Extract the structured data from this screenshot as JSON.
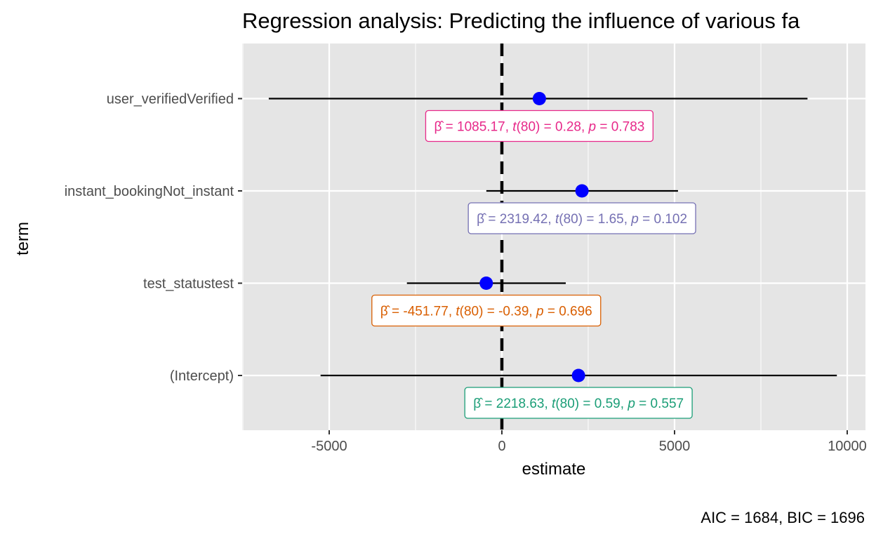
{
  "chart_data": {
    "type": "scatter",
    "subtype": "coefficient-plot",
    "title": "Regression analysis: Predicting the influence of various fa",
    "xlabel": "estimate",
    "ylabel": "term",
    "caption": "AIC = 1684, BIC = 1696",
    "xlim": [
      -7500,
      10500
    ],
    "x_ticks": [
      -5000,
      0,
      5000,
      10000
    ],
    "x_tick_labels": [
      "-5000",
      "0",
      "5000",
      "10000"
    ],
    "reference_line_x": 0,
    "grid": true,
    "background": "#e5e5e5",
    "point_color": "#0000ff",
    "terms": [
      {
        "name": "(Intercept)",
        "estimate": 2218.63,
        "conf_low": -5250,
        "conf_high": 9700,
        "color": "#1b9e77",
        "label": {
          "beta": "2218.63",
          "df": "80",
          "t": "0.59",
          "p": "0.557"
        }
      },
      {
        "name": "test_statustest",
        "estimate": -451.77,
        "conf_low": -2750,
        "conf_high": 1850,
        "color": "#d95f02",
        "label": {
          "beta": "-451.77",
          "df": "80",
          "t": "-0.39",
          "p": "0.696"
        }
      },
      {
        "name": "instant_bookingNot_instant",
        "estimate": 2319.42,
        "conf_low": -450,
        "conf_high": 5100,
        "color": "#7570b3",
        "label": {
          "beta": "2319.42",
          "df": "80",
          "t": "1.65",
          "p": "0.102"
        }
      },
      {
        "name": "user_verifiedVerified",
        "estimate": 1085.17,
        "conf_low": -6750,
        "conf_high": 8850,
        "color": "#e7298a",
        "label": {
          "beta": "1085.17",
          "df": "80",
          "t": "0.28",
          "p": "0.783"
        }
      }
    ]
  }
}
